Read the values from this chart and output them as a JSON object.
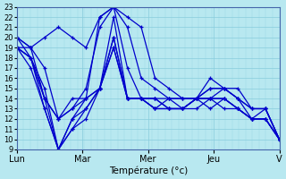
{
  "xlabel": "Température (°c)",
  "background_color": "#b8e8f0",
  "grid_color": "#88ccdd",
  "line_color": "#0000cc",
  "ylim": [
    9,
    23
  ],
  "yticks": [
    9,
    10,
    11,
    12,
    13,
    14,
    15,
    16,
    17,
    18,
    19,
    20,
    21,
    22,
    23
  ],
  "day_labels": [
    "Lun",
    "Mar",
    "Mer",
    "Jeu",
    "V"
  ],
  "day_positions": [
    0,
    1,
    2,
    3,
    4
  ],
  "series": [
    [
      20,
      19,
      20,
      21,
      20,
      19,
      22,
      23,
      22,
      21,
      16,
      15,
      14,
      14,
      14,
      15,
      15,
      13,
      13,
      10
    ],
    [
      20,
      19,
      14,
      12,
      13,
      14,
      22,
      23,
      21,
      16,
      15,
      14,
      14,
      14,
      15,
      15,
      14,
      12,
      13,
      10
    ],
    [
      20,
      18,
      14,
      12,
      13,
      15,
      21,
      23,
      17,
      14,
      14,
      13,
      13,
      14,
      16,
      15,
      14,
      13,
      13,
      10
    ],
    [
      19,
      19,
      17,
      12,
      14,
      14,
      15,
      22,
      14,
      14,
      14,
      14,
      14,
      14,
      15,
      15,
      14,
      13,
      13,
      10
    ],
    [
      19,
      18,
      15,
      9,
      12,
      14,
      15,
      20,
      14,
      14,
      14,
      13,
      13,
      14,
      14,
      14,
      13,
      12,
      12,
      10
    ],
    [
      19,
      17,
      13,
      9,
      12,
      13,
      15,
      20,
      14,
      14,
      13,
      13,
      13,
      14,
      14,
      14,
      13,
      12,
      12,
      10
    ],
    [
      19,
      18,
      14,
      9,
      11,
      13,
      15,
      19,
      14,
      14,
      13,
      14,
      13,
      14,
      13,
      14,
      13,
      12,
      12,
      10
    ],
    [
      19,
      18,
      13,
      9,
      11,
      12,
      15,
      19,
      14,
      14,
      13,
      13,
      13,
      13,
      14,
      13,
      13,
      12,
      12,
      10
    ]
  ],
  "n_days": 4,
  "total_points": 20
}
